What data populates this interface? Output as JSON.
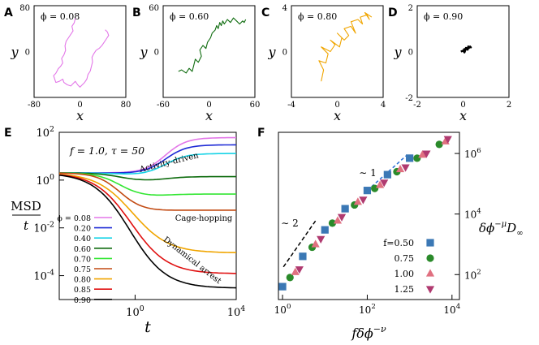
{
  "chart_data": [
    {
      "panel": "A",
      "type": "line",
      "phi_label": "ϕ = 0.08",
      "xlabel": "x",
      "ylabel": "y",
      "xticks": [
        "-80",
        "0",
        "80"
      ],
      "yticks": [
        "-80",
        "0",
        "80"
      ],
      "xlim": [
        -80,
        80
      ],
      "ylim": [
        -80,
        80
      ],
      "color": "#e377e8",
      "x": [
        -8,
        -10,
        -14,
        -12,
        -16,
        -20,
        -24,
        -26,
        -25,
        -28,
        -32,
        -30,
        -34,
        -38,
        -40,
        -42,
        -46,
        -44,
        -42,
        -36,
        -30,
        -28,
        -22,
        -16,
        -12,
        -8,
        -4,
        0,
        4,
        8,
        12,
        14,
        18,
        20,
        22,
        21,
        24,
        28,
        34,
        38,
        42,
        46,
        50,
        48,
        44
      ],
      "y": [
        58,
        50,
        44,
        36,
        30,
        24,
        18,
        10,
        2,
        -6,
        -12,
        -20,
        -26,
        -30,
        -34,
        -38,
        -42,
        -48,
        -54,
        -52,
        -48,
        -54,
        -58,
        -60,
        -56,
        -52,
        -58,
        -62,
        -58,
        -54,
        -48,
        -40,
        -34,
        -26,
        -18,
        -10,
        -4,
        2,
        6,
        10,
        16,
        22,
        28,
        34,
        38
      ]
    },
    {
      "panel": "B",
      "type": "line",
      "phi_label": "ϕ = 0.60",
      "xlabel": "x",
      "ylabel": "y",
      "xticks": [
        "-60",
        "0",
        "60"
      ],
      "yticks": [
        "-60",
        "0",
        "60"
      ],
      "xlim": [
        -60,
        60
      ],
      "ylim": [
        -60,
        60
      ],
      "color": "#0d6b0d",
      "x": [
        -40,
        -36,
        -30,
        -26,
        -22,
        -20,
        -18,
        -14,
        -10,
        -12,
        -8,
        -4,
        -2,
        2,
        4,
        8,
        10,
        12,
        14,
        16,
        18,
        20,
        24,
        28,
        32,
        36,
        40,
        44,
        46,
        48
      ],
      "y": [
        -26,
        -24,
        -28,
        -22,
        -26,
        -18,
        -10,
        -14,
        -6,
        2,
        8,
        4,
        12,
        18,
        24,
        28,
        34,
        30,
        38,
        34,
        40,
        36,
        42,
        38,
        44,
        40,
        36,
        40,
        38,
        42
      ]
    },
    {
      "panel": "C",
      "type": "line",
      "phi_label": "ϕ = 0.80",
      "xlabel": "x",
      "ylabel": "y",
      "xticks": [
        "-4",
        "0",
        "4"
      ],
      "yticks": [
        "-4",
        "0",
        "4"
      ],
      "xlim": [
        -4,
        4
      ],
      "ylim": [
        -4,
        4
      ],
      "color": "#f0a500",
      "x": [
        -1.4,
        -1.2,
        -1.6,
        -1.0,
        -0.8,
        -1.4,
        -0.6,
        -0.2,
        -0.6,
        0.2,
        0.4,
        0.0,
        0.6,
        1.0,
        0.6,
        1.2,
        1.6,
        1.2,
        1.8,
        2.2,
        2.0,
        2.6,
        2.8,
        2.4,
        3.0
      ],
      "y": [
        -2.6,
        -1.6,
        -0.8,
        -1.0,
        -0.2,
        0.4,
        0.0,
        0.6,
        1.0,
        0.4,
        1.2,
        1.6,
        1.0,
        1.4,
        2.0,
        2.2,
        1.6,
        2.6,
        2.8,
        2.4,
        3.0,
        3.2,
        2.8,
        3.4,
        3.0
      ]
    },
    {
      "panel": "D",
      "type": "line",
      "phi_label": "ϕ = 0.90",
      "xlabel": "x",
      "ylabel": "y",
      "xticks": [
        "-2",
        "0",
        "2"
      ],
      "yticks": [
        "-2",
        "0",
        "2"
      ],
      "xlim": [
        -2,
        2
      ],
      "ylim": [
        -2,
        2
      ],
      "color": "#000000",
      "x": [
        -0.1,
        0.0,
        0.06,
        0.1,
        0.04,
        0.14,
        0.2,
        0.12,
        0.24,
        0.3,
        0.22,
        0.34,
        0.28
      ],
      "y": [
        0.0,
        0.04,
        -0.04,
        0.06,
        0.1,
        0.12,
        0.08,
        0.16,
        0.14,
        0.2,
        0.22,
        0.18,
        0.24
      ]
    },
    {
      "panel": "E",
      "type": "line",
      "xlabel": "t",
      "ylabel": "MSD / t",
      "xscale": "log",
      "yscale": "log",
      "xlim": [
        0.001,
        10000
      ],
      "ylim": [
        1e-05,
        100
      ],
      "xticks": [
        "10^0",
        "10^4"
      ],
      "yticks": [
        "10^2",
        "10^0",
        "10^-2",
        "10^-4"
      ],
      "parameter_text": "f = 1.0,  τ = 50",
      "annotations": [
        "Activity-driven",
        "Cage-hopping",
        "Dynamical arrest"
      ],
      "series": [
        {
          "name": "ϕ = 0.08",
          "color": "#e377e8",
          "value_at_t0": 2,
          "plateau": 60,
          "min": 2
        },
        {
          "name": "0.20",
          "color": "#1f2bd6",
          "value_at_t0": 2,
          "plateau": 30,
          "min": 1.9
        },
        {
          "name": "0.40",
          "color": "#16d3e6",
          "value_at_t0": 2,
          "plateau": 13,
          "min": 1.6
        },
        {
          "name": "0.60",
          "color": "#0d6b0d",
          "value_at_t0": 2,
          "plateau": 1.4,
          "min": 0.9
        },
        {
          "name": "0.70",
          "color": "#33e633",
          "value_at_t0": 2,
          "plateau": 0.26,
          "min": 0.2
        },
        {
          "name": "0.75",
          "color": "#c24a12",
          "value_at_t0": 2,
          "plateau": 0.055,
          "min": 0.05
        },
        {
          "name": "0.80",
          "color": "#f0a500",
          "value_at_t0": 2,
          "plateau": 0.0009,
          "min": 0.0009
        },
        {
          "name": "0.85",
          "color": "#e01010",
          "value_at_t0": 2,
          "plateau": 0.00012,
          "min": 0.00012
        },
        {
          "name": "0.90",
          "color": "#000000",
          "value_at_t0": 2,
          "plateau": 3e-05,
          "min": 3e-05
        }
      ]
    },
    {
      "panel": "F",
      "type": "scatter",
      "xlabel": "f δϕ^-ν",
      "ylabel": "δϕ^-μ D∞",
      "xscale": "log",
      "yscale": "log",
      "xlim": [
        0.8,
        15000
      ],
      "ylim": [
        15,
        5000000
      ],
      "xticks": [
        "10^0",
        "10^2",
        "10^4"
      ],
      "yticks": [
        "10^6",
        "10^4",
        "10^2"
      ],
      "guide_lines": [
        {
          "label": "∼ 2",
          "slope": 2,
          "color": "#000000"
        },
        {
          "label": "∼ 1",
          "slope": 1,
          "color": "#2a6fd6"
        }
      ],
      "series": [
        {
          "name": "0.50",
          "marker": "square",
          "color": "#3b78b5",
          "x": [
            1,
            3,
            10,
            30,
            100,
            300,
            1000
          ],
          "y": [
            40,
            400,
            3000,
            15000,
            60000,
            200000,
            700000
          ]
        },
        {
          "name": "0.75",
          "marker": "circle",
          "color": "#2a8a2a",
          "x": [
            1.5,
            5,
            15,
            50,
            150,
            500,
            1500,
            5000
          ],
          "y": [
            80,
            800,
            5000,
            20000,
            70000,
            250000,
            700000,
            2000000
          ]
        },
        {
          "name": "1.00",
          "marker": "triangle-up",
          "color": "#e07080",
          "x": [
            2,
            6,
            20,
            60,
            200,
            600,
            2000,
            7000
          ],
          "y": [
            120,
            1000,
            6000,
            25000,
            90000,
            300000,
            900000,
            2500000
          ]
        },
        {
          "name": "1.25",
          "marker": "triangle-down",
          "color": "#b03a70",
          "x": [
            2.5,
            8,
            25,
            80,
            250,
            800,
            2500,
            8000
          ],
          "y": [
            150,
            1500,
            8000,
            30000,
            110000,
            350000,
            1000000,
            3000000
          ]
        }
      ],
      "legend_title": "f"
    }
  ]
}
